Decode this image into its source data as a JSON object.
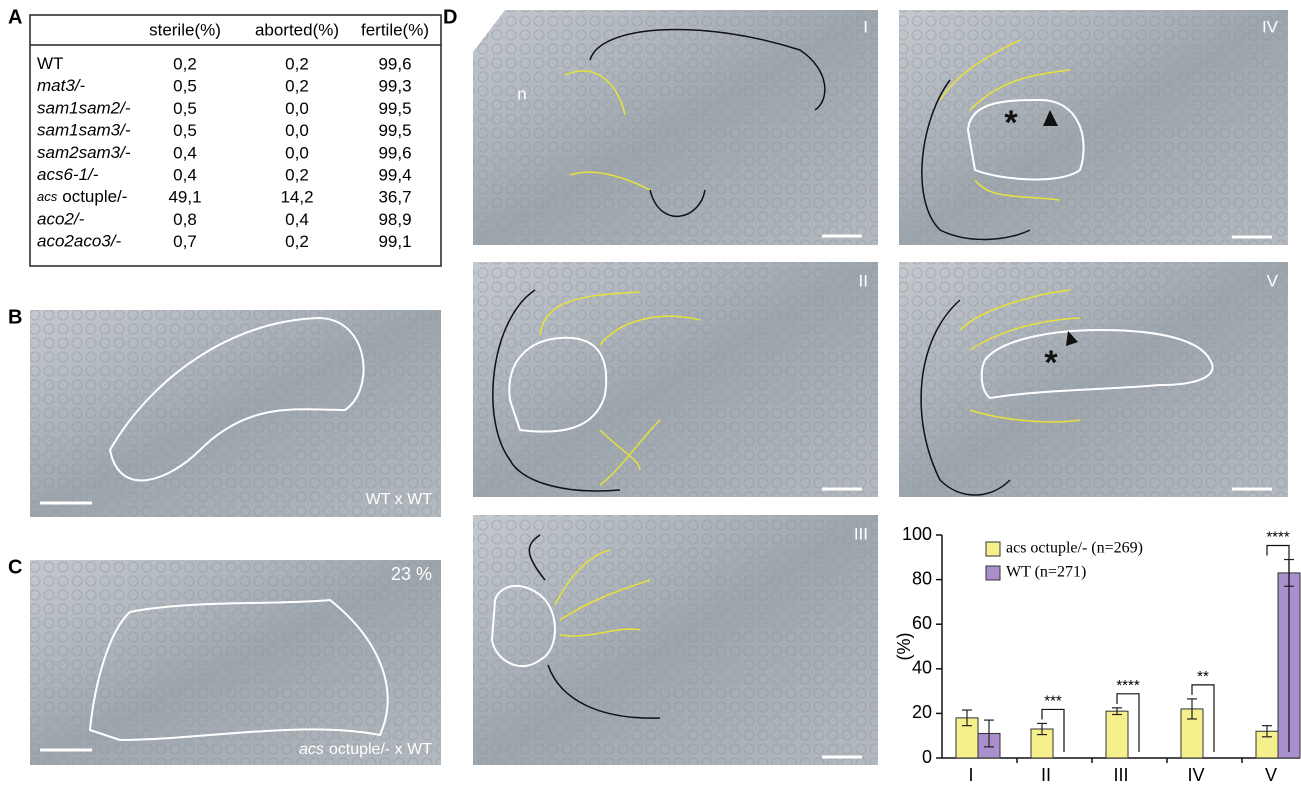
{
  "panel_labels": [
    "A",
    "B",
    "C",
    "D"
  ],
  "table": {
    "columns": [
      "sterile(%)",
      "aborted(%)",
      "fertile(%)"
    ],
    "rows": [
      {
        "name": "WT",
        "italic": false,
        "values": [
          "0,2",
          "0,2",
          "99,6"
        ]
      },
      {
        "name": "mat3/-",
        "italic": true,
        "values": [
          "0,5",
          "0,2",
          "99,3"
        ]
      },
      {
        "name": "sam1sam2/-",
        "italic": true,
        "values": [
          "0,5",
          "0,0",
          "99,5"
        ]
      },
      {
        "name": "sam1sam3/-",
        "italic": true,
        "values": [
          "0,5",
          "0,0",
          "99,5"
        ]
      },
      {
        "name": "sam2sam3/-",
        "italic": true,
        "values": [
          "0,4",
          "0,0",
          "99,6"
        ]
      },
      {
        "name": "acs6-1/-",
        "italic": true,
        "values": [
          "0,4",
          "0,2",
          "99,4"
        ]
      },
      {
        "name_prefix": "acs",
        "name": "octuple/-",
        "italic": false,
        "values": [
          "49,1",
          "14,2",
          "36,7"
        ]
      },
      {
        "name": "aco2/-",
        "italic": true,
        "values": [
          "0,8",
          "0,4",
          "98,9"
        ]
      },
      {
        "name": "aco2aco3/-",
        "italic": true,
        "values": [
          "0,7",
          "0,2",
          "99,1"
        ]
      }
    ]
  },
  "images": {
    "B": {
      "caption": "WT x WT"
    },
    "C": {
      "caption_prefix": "acs",
      "caption": "octuple/- x WT",
      "percent": "23 %"
    },
    "D": [
      {
        "stage": "I",
        "marker": "n"
      },
      {
        "stage": "II"
      },
      {
        "stage": "III"
      },
      {
        "stage": "IV"
      },
      {
        "stage": "V"
      }
    ]
  },
  "chart_data": {
    "type": "bar",
    "y_label": "(%)",
    "categories": [
      "I",
      "II",
      "III",
      "IV",
      "V"
    ],
    "series": [
      {
        "name": "acs octuple/- (n=269)",
        "color": "#f6f08c",
        "values": [
          18,
          13,
          21,
          22,
          12
        ],
        "errors": [
          3.5,
          2.5,
          1.5,
          4.5,
          2.5
        ]
      },
      {
        "name": "WT (n=271)",
        "color": "#a98fcb",
        "values": [
          11,
          0,
          0,
          0,
          83
        ],
        "errors": [
          6,
          null,
          null,
          null,
          6
        ]
      }
    ],
    "significance": [
      null,
      "***",
      "****",
      "**",
      "****"
    ],
    "ylim": [
      0,
      100
    ],
    "yticks": [
      0,
      20,
      40,
      60,
      80,
      100
    ],
    "grid": false,
    "legend": "top-left"
  }
}
